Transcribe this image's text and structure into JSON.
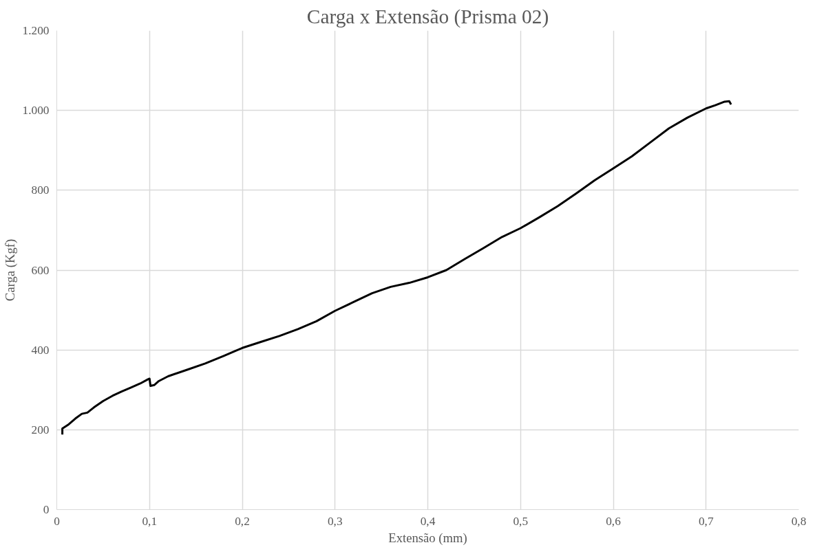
{
  "chart_data": {
    "type": "line",
    "title": "Carga x Extensão (Prisma 02)",
    "xlabel": "Extensão (mm)",
    "ylabel": "Carga (Kgf)",
    "xlim": [
      0,
      0.8
    ],
    "ylim": [
      0,
      1200
    ],
    "xticks": [
      0,
      {
        "value": 0.1,
        "label": "0,1"
      },
      {
        "value": 0.2,
        "label": "0,2"
      },
      {
        "value": 0.3,
        "label": "0,3"
      },
      {
        "value": 0.4,
        "label": "0,4"
      },
      {
        "value": 0.5,
        "label": "0,5"
      },
      {
        "value": 0.6,
        "label": "0,6"
      },
      {
        "value": 0.7,
        "label": "0,7"
      },
      {
        "value": 0.8,
        "label": "0,8"
      }
    ],
    "yticks": [
      0,
      200,
      400,
      600,
      800,
      {
        "value": 1000,
        "label": "1.000"
      },
      {
        "value": 1200,
        "label": "1.200"
      }
    ],
    "grid": true,
    "marker": "none",
    "line_style": "solid",
    "series": [
      {
        "color": "#000000",
        "x": [
          0.006,
          0.006,
          0.012,
          0.02,
          0.027,
          0.033,
          0.04,
          0.05,
          0.06,
          0.07,
          0.08,
          0.09,
          0.098,
          0.1,
          0.101,
          0.105,
          0.11,
          0.12,
          0.14,
          0.16,
          0.18,
          0.2,
          0.22,
          0.24,
          0.26,
          0.28,
          0.3,
          0.32,
          0.34,
          0.36,
          0.38,
          0.4,
          0.42,
          0.44,
          0.46,
          0.48,
          0.5,
          0.52,
          0.54,
          0.56,
          0.58,
          0.6,
          0.62,
          0.64,
          0.66,
          0.68,
          0.7,
          0.71,
          0.72,
          0.725,
          0.727
        ],
        "values": [
          188,
          203,
          212,
          228,
          240,
          243,
          256,
          272,
          285,
          296,
          306,
          316,
          326,
          328,
          310,
          312,
          322,
          334,
          350,
          366,
          385,
          405,
          420,
          435,
          452,
          472,
          498,
          520,
          542,
          558,
          568,
          582,
          600,
          628,
          655,
          683,
          705,
          732,
          760,
          792,
          825,
          855,
          885,
          920,
          955,
          982,
          1005,
          1013,
          1022,
          1023,
          1015
        ]
      }
    ]
  }
}
